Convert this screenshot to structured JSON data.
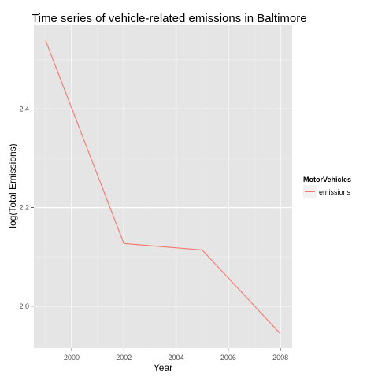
{
  "chart_data": {
    "type": "line",
    "title": "Time series of vehicle-related emissions in Baltimore",
    "xlabel": "Year",
    "ylabel": "log(Total Emissions)",
    "x": [
      1999,
      2002,
      2005,
      2008
    ],
    "series": [
      {
        "name": "emissions",
        "values": [
          2.539,
          2.127,
          2.114,
          1.944
        ],
        "color": "#F8766D"
      }
    ],
    "xlim": [
      1998.55,
      2008.45
    ],
    "ylim": [
      1.915,
      2.57
    ],
    "xticks": [
      2000,
      2002,
      2004,
      2006,
      2008
    ],
    "yticks": [
      2.0,
      2.2,
      2.4
    ],
    "ytick_labels": [
      "2.0",
      "2.2",
      "2.4"
    ],
    "grid": true,
    "panel_background": "#E5E5E5",
    "legend": {
      "title": "MotorVehicles",
      "position": "right"
    }
  }
}
